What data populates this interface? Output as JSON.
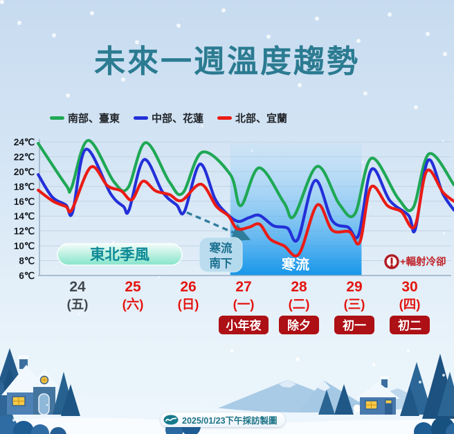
{
  "page": {
    "title": "未來一週溫度趨勢"
  },
  "legend": {
    "items": [
      {
        "label": "南部、臺東",
        "color": "#1fa855"
      },
      {
        "label": "中部、花蓮",
        "color": "#2330d8"
      },
      {
        "label": "北部、宜蘭",
        "color": "#ea1c15"
      }
    ]
  },
  "chart_data": {
    "type": "line",
    "title": "未來一週溫度趨勢",
    "xlabel": "",
    "ylabel": "℃",
    "ylim": [
      6,
      24
    ],
    "grid": true,
    "legend_position": "top",
    "x_unit": "days from the 24th label center; fractional values = time of day",
    "y_axis": {
      "unit": "℃",
      "min": 6,
      "max": 24,
      "step": 2,
      "tick_labels": [
        "24℃",
        "22℃",
        "20℃",
        "18℃",
        "16℃",
        "14℃",
        "12℃",
        "10℃",
        "8℃",
        "6℃"
      ]
    },
    "x_axis": {
      "days": [
        {
          "date": "24",
          "weekday": "(五)",
          "holiday": null,
          "highlight": false
        },
        {
          "date": "25",
          "weekday": "(六)",
          "holiday": null,
          "highlight": true
        },
        {
          "date": "26",
          "weekday": "(日)",
          "holiday": null,
          "highlight": true
        },
        {
          "date": "27",
          "weekday": "(一)",
          "holiday": "小年夜",
          "highlight": true
        },
        {
          "date": "28",
          "weekday": "(二)",
          "holiday": "除夕",
          "highlight": true
        },
        {
          "date": "29",
          "weekday": "(三)",
          "holiday": "初一",
          "highlight": true
        },
        {
          "date": "30",
          "weekday": "(四)",
          "holiday": "初二",
          "highlight": true
        }
      ],
      "date_color_normal": "#41474d",
      "date_color_highlight": "#e41410",
      "holiday_badge_bg": "#ad1015",
      "holiday_badge_text_color": "#ffffff"
    },
    "series": [
      {
        "name": "南部、臺東",
        "color": "#1fa855",
        "points": [
          [
            -0.71,
            23.8
          ],
          [
            -0.21,
            18.2
          ],
          [
            -0.11,
            17.8
          ],
          [
            0.19,
            24.2
          ],
          [
            0.66,
            18.6
          ],
          [
            0.91,
            17.8
          ],
          [
            1.23,
            23.9
          ],
          [
            1.66,
            18.6
          ],
          [
            1.9,
            17.1
          ],
          [
            2.25,
            22.6
          ],
          [
            2.76,
            19.6
          ],
          [
            2.95,
            15.4
          ],
          [
            3.28,
            20.5
          ],
          [
            3.73,
            15.8
          ],
          [
            3.91,
            14.0
          ],
          [
            4.33,
            20.7
          ],
          [
            4.73,
            15.6
          ],
          [
            5.01,
            14.3
          ],
          [
            5.31,
            21.8
          ],
          [
            5.79,
            16.4
          ],
          [
            6.06,
            15.1
          ],
          [
            6.35,
            22.4
          ],
          [
            6.8,
            18.2
          ]
        ]
      },
      {
        "name": "中部、花蓮",
        "color": "#2330d8",
        "points": [
          [
            -0.71,
            19.6
          ],
          [
            -0.46,
            16.6
          ],
          [
            -0.21,
            15.5
          ],
          [
            -0.09,
            14.5
          ],
          [
            0.15,
            23.0
          ],
          [
            0.6,
            17.0
          ],
          [
            0.83,
            15.3
          ],
          [
            0.93,
            14.8
          ],
          [
            1.2,
            21.6
          ],
          [
            1.54,
            17.2
          ],
          [
            1.79,
            15.5
          ],
          [
            1.93,
            14.6
          ],
          [
            2.21,
            21.0
          ],
          [
            2.48,
            16.4
          ],
          [
            2.66,
            14.6
          ],
          [
            2.89,
            13.3
          ],
          [
            3.1,
            13.8
          ],
          [
            3.29,
            14.1
          ],
          [
            3.54,
            12.7
          ],
          [
            3.79,
            12.4
          ],
          [
            3.98,
            10.9
          ],
          [
            4.29,
            18.8
          ],
          [
            4.6,
            13.4
          ],
          [
            4.89,
            12.5
          ],
          [
            5.08,
            11.5
          ],
          [
            5.31,
            20.3
          ],
          [
            5.64,
            16.1
          ],
          [
            5.98,
            14.1
          ],
          [
            6.1,
            12.2
          ],
          [
            6.33,
            21.5
          ],
          [
            6.6,
            17.0
          ],
          [
            6.8,
            14.8
          ]
        ]
      },
      {
        "name": "北部、宜蘭",
        "color": "#ea1c15",
        "points": [
          [
            -0.71,
            17.5
          ],
          [
            -0.44,
            16.0
          ],
          [
            -0.21,
            15.3
          ],
          [
            -0.1,
            14.9
          ],
          [
            0.24,
            20.6
          ],
          [
            0.54,
            18.1
          ],
          [
            0.79,
            17.4
          ],
          [
            0.98,
            16.2
          ],
          [
            1.18,
            18.7
          ],
          [
            1.41,
            17.4
          ],
          [
            1.66,
            16.9
          ],
          [
            1.88,
            16.1
          ],
          [
            2.23,
            18.3
          ],
          [
            2.51,
            15.3
          ],
          [
            2.73,
            14.0
          ],
          [
            2.88,
            12.3
          ],
          [
            3.1,
            12.5
          ],
          [
            3.29,
            12.9
          ],
          [
            3.48,
            10.9
          ],
          [
            3.73,
            10.0
          ],
          [
            4.0,
            8.9
          ],
          [
            4.33,
            15.5
          ],
          [
            4.6,
            12.1
          ],
          [
            4.91,
            11.9
          ],
          [
            5.1,
            10.5
          ],
          [
            5.3,
            17.9
          ],
          [
            5.6,
            15.4
          ],
          [
            5.85,
            14.6
          ],
          [
            6.09,
            12.6
          ],
          [
            6.31,
            20.1
          ],
          [
            6.6,
            17.2
          ],
          [
            6.8,
            16.0
          ]
        ]
      }
    ],
    "cold_surge_region": {
      "from_day": 2.76,
      "to_day": 5.13,
      "top_color": "rgba(140,210,250,0.08)",
      "bottom_color": "rgba(10,145,232,0.95)"
    },
    "annotations": {
      "monsoon": "東北季風",
      "cold_surge_note_line1": "寒流",
      "cold_surge_note_line2": "南下",
      "cold_surge_region_label": "寒流",
      "radiative_cooling_note": "+輻射冷卻"
    }
  },
  "footer": {
    "caption": "2025/01/23下午採訪製圖"
  }
}
